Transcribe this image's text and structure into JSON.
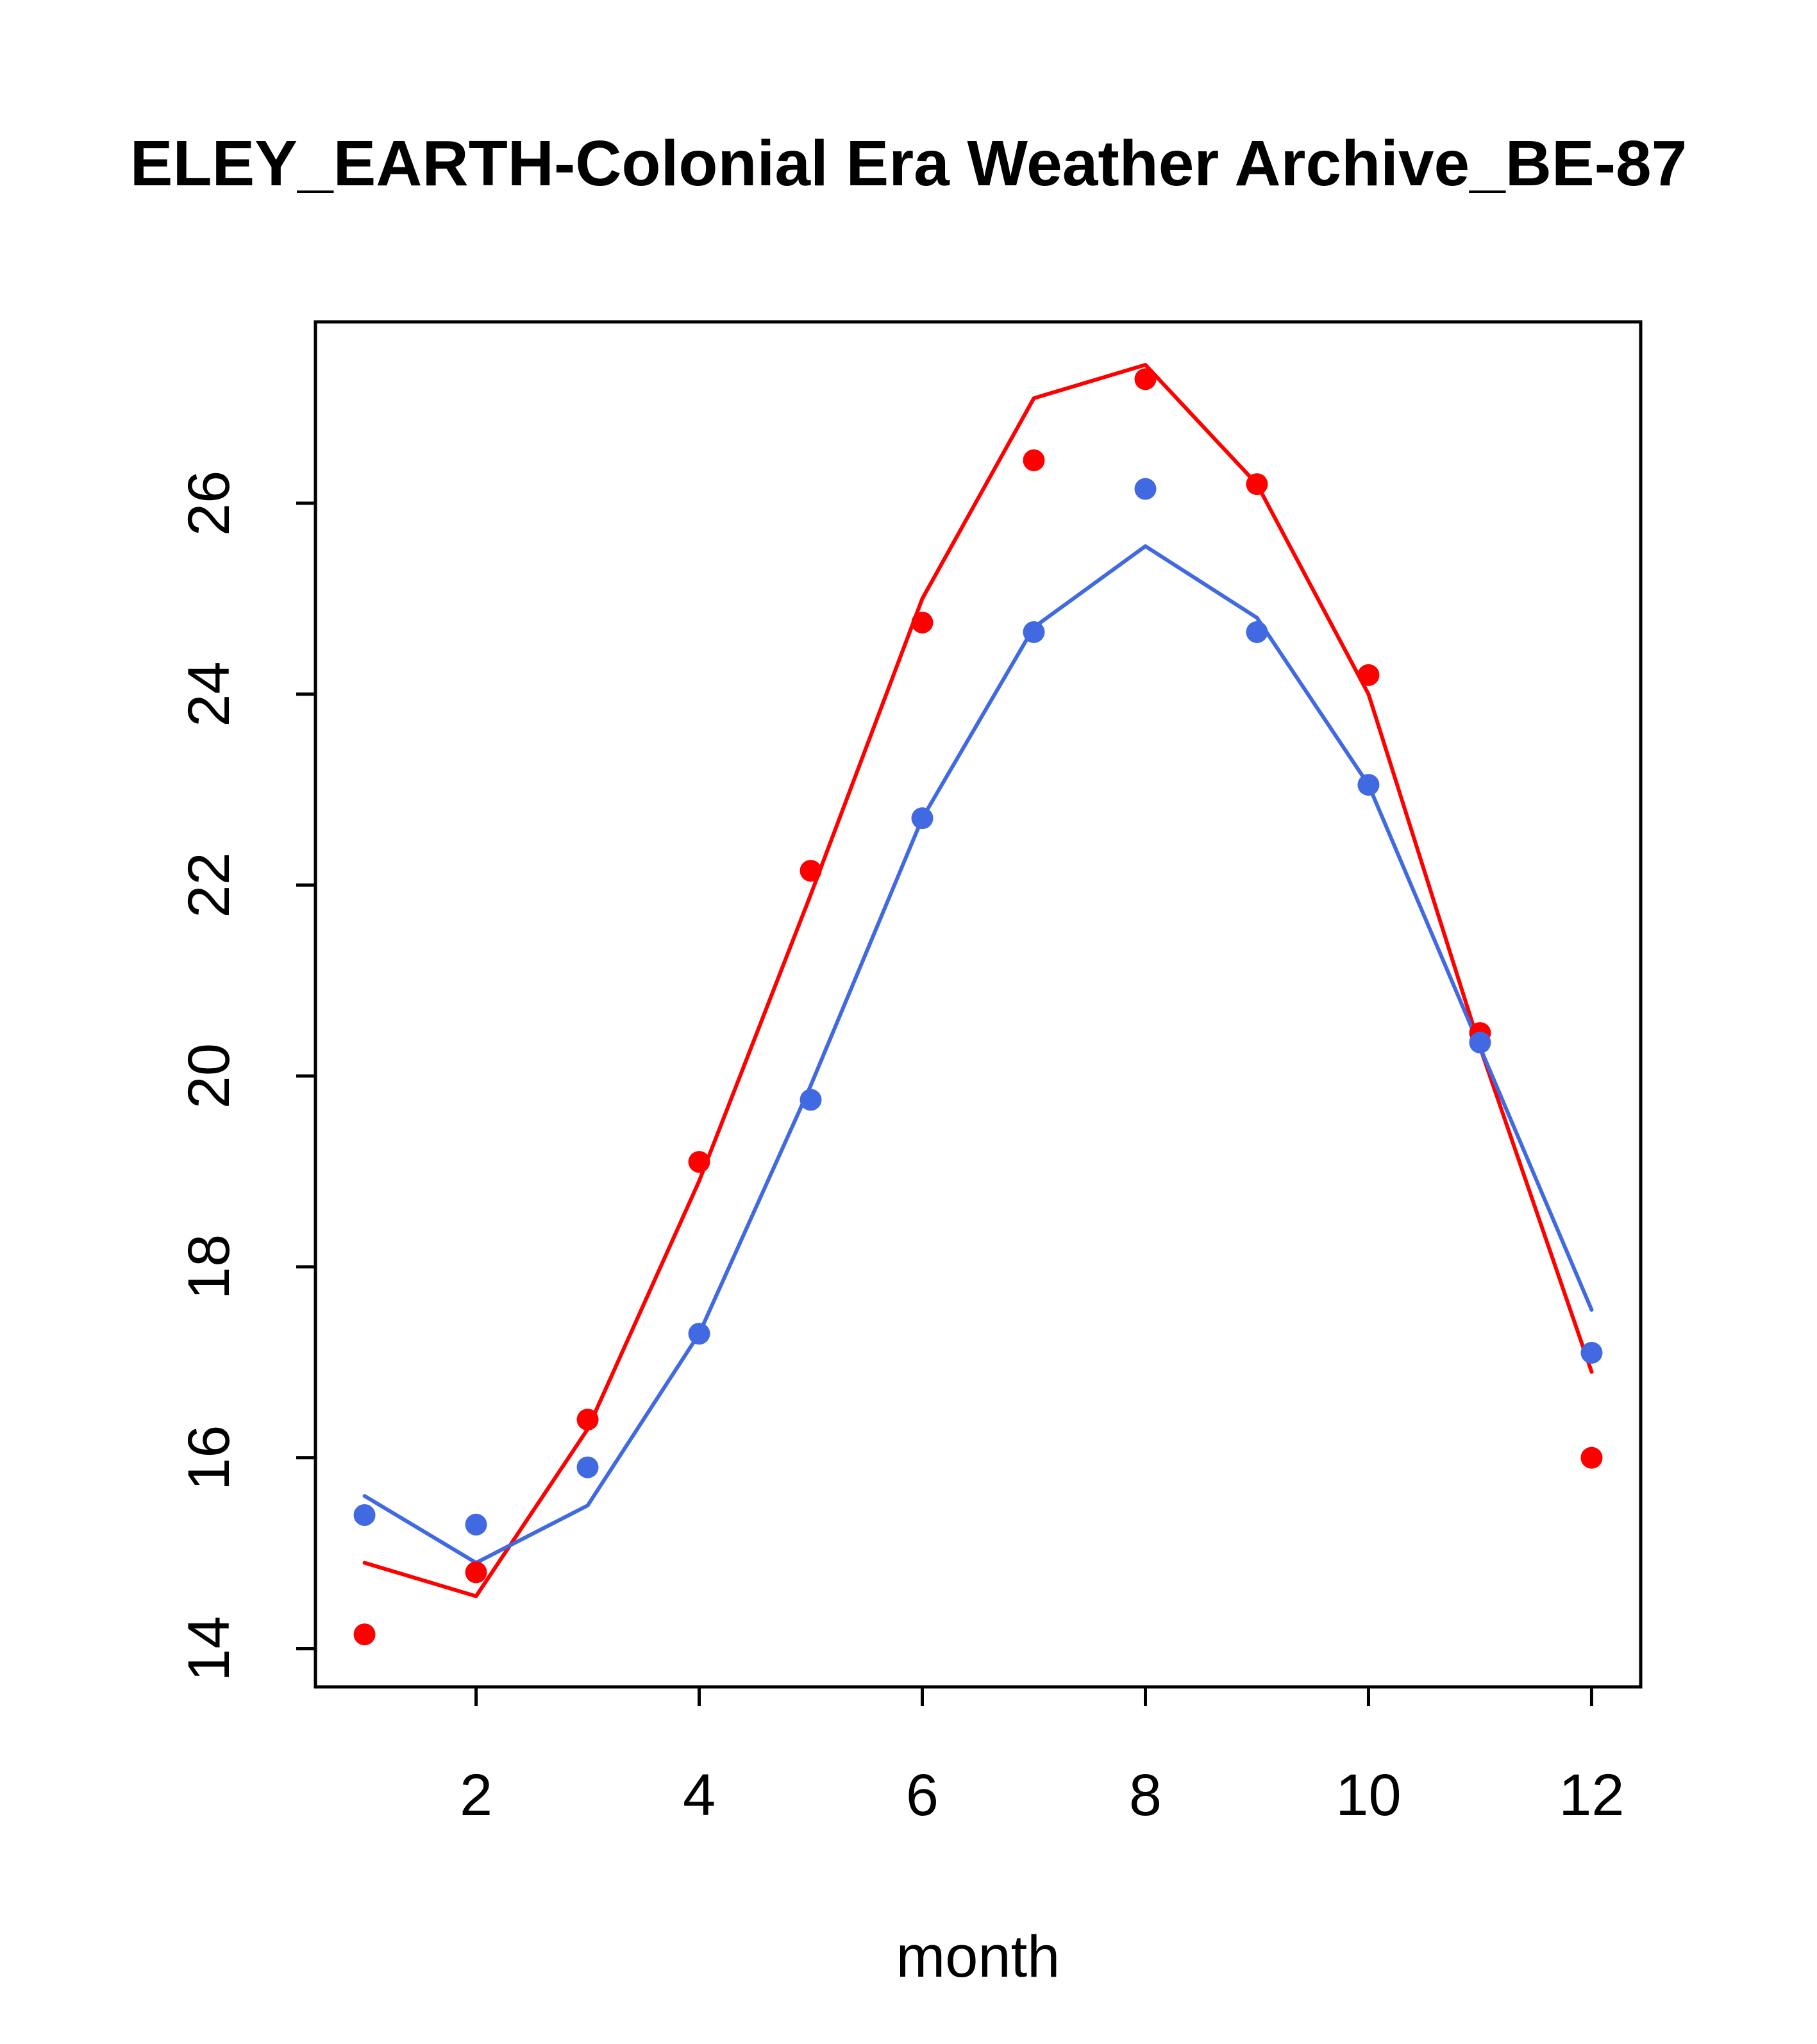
{
  "page": {
    "background": "#ffffff"
  },
  "chart_data": {
    "type": "line",
    "title": "ELEY_EARTH-Colonial Era Weather Archive_BE-87",
    "xlabel": "month",
    "ylabel": "",
    "x": [
      1,
      2,
      3,
      4,
      5,
      6,
      7,
      8,
      9,
      10,
      11,
      12
    ],
    "xlim": [
      0.56,
      12.44
    ],
    "ylim": [
      13.6,
      27.9
    ],
    "xticks": [
      2,
      4,
      6,
      8,
      10,
      12
    ],
    "yticks": [
      14,
      16,
      18,
      20,
      22,
      24,
      26
    ],
    "grid": false,
    "legend": "none",
    "colors": {
      "red": "#FF0000",
      "blue": "#4169E1",
      "axis": "#000000"
    },
    "series": [
      {
        "name": "red-line",
        "style": "line",
        "color": "#FF0000",
        "values": [
          14.9,
          14.55,
          16.3,
          18.9,
          21.9,
          25.0,
          27.1,
          27.45,
          26.2,
          24.0,
          20.3,
          16.9
        ]
      },
      {
        "name": "blue-line",
        "style": "line",
        "color": "#4169E1",
        "values": [
          15.6,
          14.9,
          15.5,
          17.3,
          19.9,
          22.7,
          24.7,
          25.55,
          24.8,
          23.05,
          20.3,
          17.55
        ]
      },
      {
        "name": "red-points",
        "style": "points",
        "color": "#FF0000",
        "values": [
          14.15,
          14.8,
          16.4,
          19.1,
          22.15,
          24.75,
          26.45,
          27.3,
          26.2,
          24.2,
          20.45,
          16.0
        ]
      },
      {
        "name": "blue-points",
        "style": "points",
        "color": "#4169E1",
        "values": [
          15.4,
          15.3,
          15.9,
          17.3,
          19.75,
          22.7,
          24.65,
          26.15,
          24.65,
          23.05,
          20.35,
          17.1
        ]
      }
    ]
  }
}
